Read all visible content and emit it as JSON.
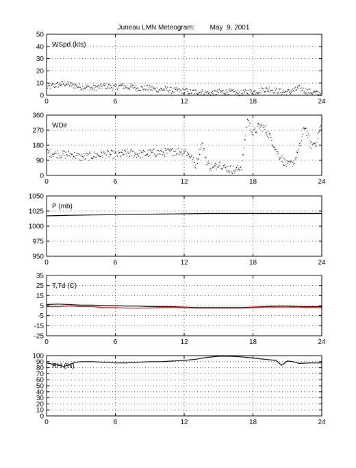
{
  "title": "Juneau LMN Meteogram:        May  9, 2001",
  "chart_data": [
    {
      "type": "scatter",
      "panel_label": "WSpd (kts)",
      "xlim": [
        0,
        24
      ],
      "ylim": [
        0,
        50
      ],
      "x_ticks": [
        0,
        6,
        12,
        18,
        24
      ],
      "y_ticks": [
        0,
        10,
        20,
        30,
        40,
        50
      ],
      "grid": true,
      "series": [
        {
          "style": "dots",
          "color": "#000000",
          "x": [
            0,
            0.5,
            1,
            1.5,
            2,
            2.5,
            3,
            3.5,
            4,
            4.5,
            5,
            5.5,
            6,
            6.5,
            7,
            7.5,
            8,
            8.5,
            9,
            9.5,
            10,
            10.5,
            11,
            11.5,
            12,
            12.5,
            13,
            13.5,
            14,
            14.5,
            15,
            15.5,
            16,
            16.5,
            17,
            17.5,
            18,
            18.5,
            19,
            19.5,
            20,
            20.5,
            21,
            21.5,
            22,
            22.5,
            23,
            23.5,
            24
          ],
          "values": [
            7,
            8,
            9,
            10,
            9,
            8,
            7,
            7,
            6,
            7,
            8,
            7,
            7,
            8,
            7,
            7,
            6,
            6,
            6,
            5,
            5,
            5,
            4,
            4,
            4,
            3,
            3,
            3,
            2,
            2,
            3,
            3,
            3,
            2,
            2,
            3,
            3,
            4,
            5,
            5,
            4,
            3,
            3,
            4,
            6,
            4,
            3,
            2,
            2
          ],
          "spread": 2.5
        }
      ]
    },
    {
      "type": "scatter",
      "panel_label": "WDir",
      "xlim": [
        0,
        24
      ],
      "ylim": [
        0,
        360
      ],
      "x_ticks": [
        0,
        6,
        12,
        18,
        24
      ],
      "y_ticks": [
        0,
        90,
        180,
        270,
        360
      ],
      "grid": true,
      "series": [
        {
          "style": "dots",
          "color": "#000000",
          "x": [
            0,
            0.5,
            1,
            1.5,
            2,
            2.5,
            3,
            3.5,
            4,
            4.5,
            5,
            5.5,
            6,
            6.5,
            7,
            7.5,
            8,
            8.5,
            9,
            9.5,
            10,
            10.5,
            11,
            11.5,
            12,
            12.5,
            13,
            13.5,
            14,
            14.5,
            15,
            15.5,
            16,
            16.5,
            17,
            17.5,
            18,
            18.5,
            19,
            19.5,
            20,
            20.5,
            21,
            21.5,
            22,
            22.5,
            23,
            23.5,
            24
          ],
          "values": [
            140,
            135,
            130,
            125,
            130,
            120,
            110,
            115,
            120,
            125,
            130,
            128,
            125,
            130,
            135,
            132,
            130,
            130,
            135,
            138,
            140,
            140,
            145,
            145,
            150,
            120,
            60,
            200,
            70,
            40,
            80,
            50,
            40,
            30,
            60,
            340,
            250,
            300,
            280,
            230,
            150,
            100,
            60,
            80,
            160,
            300,
            180,
            200,
            330
          ],
          "spread": 25
        }
      ]
    },
    {
      "type": "line",
      "panel_label": "P (mb)",
      "xlim": [
        0,
        24
      ],
      "ylim": [
        950,
        1050
      ],
      "x_ticks": [
        0,
        6,
        12,
        18,
        24
      ],
      "y_ticks": [
        950,
        975,
        1000,
        1025,
        1050
      ],
      "grid": true,
      "series": [
        {
          "style": "line",
          "color": "#000000",
          "x": [
            0,
            2,
            4,
            6,
            8,
            10,
            12,
            14,
            16,
            18,
            20,
            22,
            24
          ],
          "values": [
            1017,
            1018,
            1018.5,
            1019,
            1019.5,
            1020,
            1020.5,
            1021,
            1021,
            1021,
            1021,
            1021,
            1021
          ]
        }
      ]
    },
    {
      "type": "line",
      "panel_label": "T,Td (C)",
      "xlim": [
        0,
        24
      ],
      "ylim": [
        -25,
        35
      ],
      "x_ticks": [
        0,
        6,
        12,
        18,
        24
      ],
      "y_ticks": [
        -25,
        -15,
        -5,
        5,
        15,
        25,
        35
      ],
      "grid": true,
      "series": [
        {
          "style": "line",
          "color": "#000000",
          "x": [
            0,
            1,
            2,
            3,
            4,
            5,
            6,
            7,
            8,
            9,
            10,
            11,
            12,
            13,
            14,
            15,
            16,
            17,
            18,
            19,
            20,
            21,
            22,
            23,
            24
          ],
          "values": [
            6,
            6.5,
            6,
            5.5,
            5.5,
            5,
            5,
            4.5,
            4.5,
            4,
            4,
            4,
            3.5,
            3,
            3,
            3,
            3,
            3,
            3.5,
            4,
            4.5,
            4.5,
            4,
            4,
            4
          ]
        },
        {
          "style": "line",
          "color": "#e00000",
          "x": [
            0,
            1,
            2,
            3,
            4,
            5,
            6,
            7,
            8,
            9,
            10,
            11,
            12,
            13,
            14,
            15,
            16,
            17,
            18,
            19,
            20,
            21,
            22,
            23,
            24
          ],
          "values": [
            4,
            4,
            4.5,
            4,
            4,
            3,
            3,
            2.5,
            2.5,
            2.5,
            3,
            3,
            3,
            2.5,
            2.5,
            2.5,
            2.5,
            2.5,
            3,
            3.5,
            3.5,
            3.5,
            3.5,
            3,
            3
          ]
        }
      ]
    },
    {
      "type": "line",
      "panel_label": "RH (%)",
      "xlim": [
        0,
        24
      ],
      "ylim": [
        0,
        100
      ],
      "x_ticks": [
        0,
        6,
        12,
        18,
        24
      ],
      "y_ticks": [
        0,
        10,
        20,
        30,
        40,
        50,
        60,
        70,
        80,
        90,
        100
      ],
      "grid": true,
      "series": [
        {
          "style": "line",
          "color": "#000000",
          "x": [
            0,
            0.5,
            1,
            1.5,
            2,
            2.5,
            3,
            4,
            5,
            6,
            7,
            8,
            9,
            10,
            11,
            12,
            13,
            14,
            15,
            16,
            17,
            18,
            19,
            20,
            20.5,
            21,
            21.5,
            22,
            23,
            24
          ],
          "values": [
            88,
            86,
            85,
            82,
            85,
            89,
            90,
            90,
            89,
            88,
            88,
            89,
            90,
            90,
            91,
            92,
            94,
            97,
            99,
            99,
            98,
            96,
            94,
            92,
            84,
            91,
            90,
            87,
            88,
            88
          ]
        }
      ]
    }
  ]
}
